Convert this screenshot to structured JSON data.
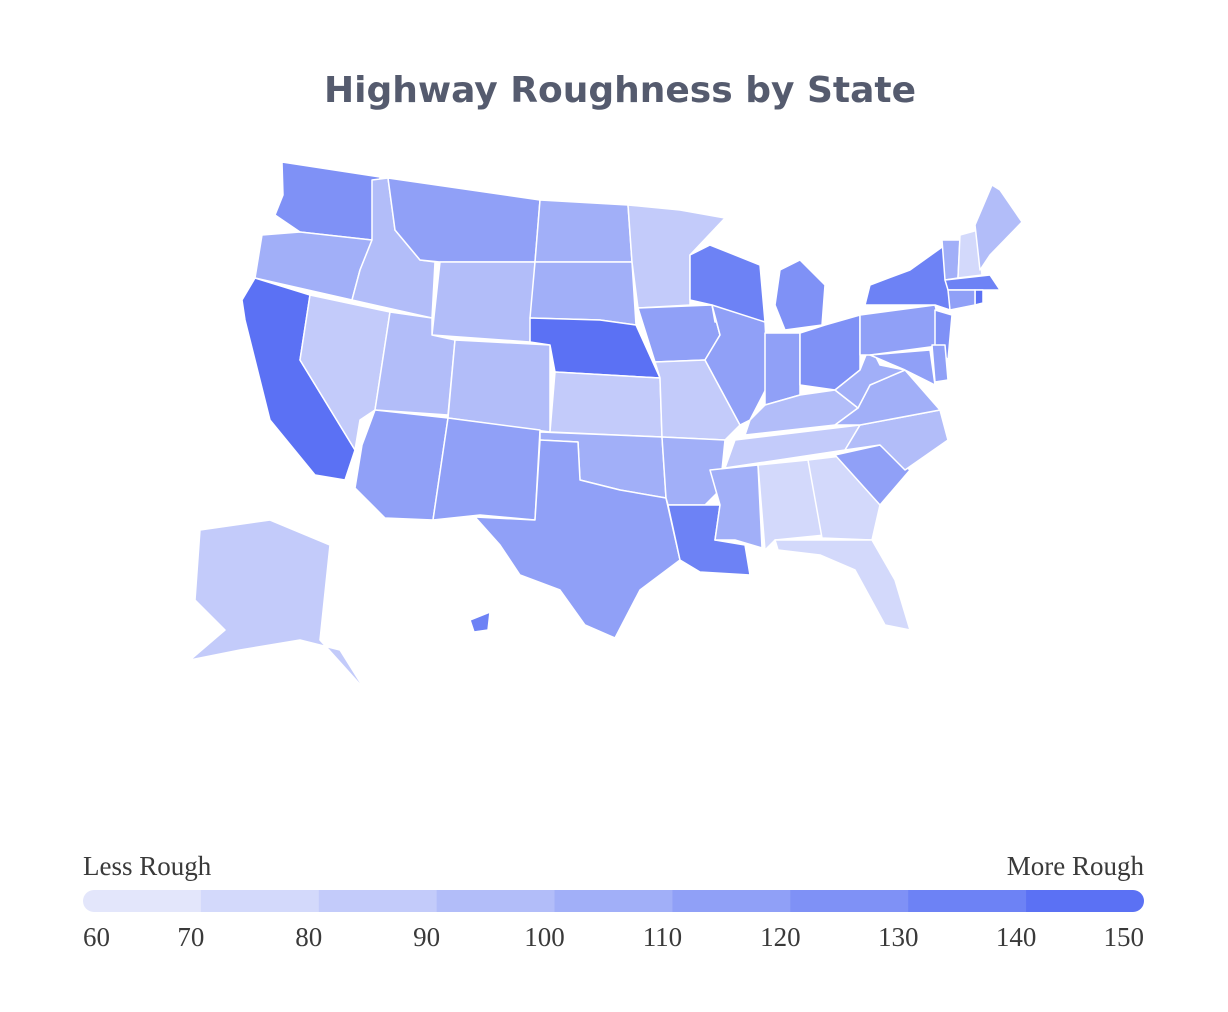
{
  "chart_data": {
    "type": "choropleth",
    "title": "Highway Roughness by State",
    "values": [
      120,
      105,
      145,
      85,
      95,
      118,
      95,
      95,
      95,
      112,
      118,
      105,
      105,
      142,
      85,
      105,
      112,
      85,
      112,
      88,
      105,
      135,
      135,
      118,
      128,
      112,
      122,
      92,
      82,
      100,
      72,
      72,
      75,
      115,
      95,
      105,
      105,
      118,
      132,
      100,
      78,
      92,
      135,
      140,
      110,
      125,
      110,
      112,
      82,
      130
    ],
    "legend": {
      "min_label": "Less Rough",
      "max_label": "More Rough",
      "bins": [
        60,
        70,
        80,
        90,
        100,
        110,
        120,
        130,
        140,
        150
      ],
      "colors": [
        "#e3e6fb",
        "#d3d9fb",
        "#c3cbfa",
        "#b2bdf9",
        "#a1aff8",
        "#90a0f7",
        "#7f91f6",
        "#6d82f5",
        "#5b71f4"
      ]
    }
  }
}
